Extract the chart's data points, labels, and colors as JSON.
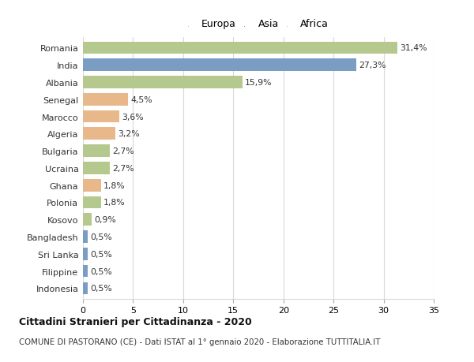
{
  "countries": [
    "Romania",
    "India",
    "Albania",
    "Senegal",
    "Marocco",
    "Algeria",
    "Bulgaria",
    "Ucraina",
    "Ghana",
    "Polonia",
    "Kosovo",
    "Bangladesh",
    "Sri Lanka",
    "Filippine",
    "Indonesia"
  ],
  "values": [
    31.4,
    27.3,
    15.9,
    4.5,
    3.6,
    3.2,
    2.7,
    2.7,
    1.8,
    1.8,
    0.9,
    0.5,
    0.5,
    0.5,
    0.5
  ],
  "continents": [
    "Europa",
    "Asia",
    "Europa",
    "Africa",
    "Africa",
    "Africa",
    "Europa",
    "Europa",
    "Africa",
    "Europa",
    "Europa",
    "Asia",
    "Asia",
    "Asia",
    "Asia"
  ],
  "labels": [
    "31,4%",
    "27,3%",
    "15,9%",
    "4,5%",
    "3,6%",
    "3,2%",
    "2,7%",
    "2,7%",
    "1,8%",
    "1,8%",
    "0,9%",
    "0,5%",
    "0,5%",
    "0,5%",
    "0,5%"
  ],
  "color_map": {
    "Europa": "#b5c98e",
    "Asia": "#7b9dc4",
    "Africa": "#e8b88a"
  },
  "xlim": [
    0,
    35
  ],
  "xticks": [
    0,
    5,
    10,
    15,
    20,
    25,
    30,
    35
  ],
  "background_color": "#ffffff",
  "grid_color": "#d8d8d8",
  "title_main": "Cittadini Stranieri per Cittadinanza - 2020",
  "title_sub": "COMUNE DI PASTORANO (CE) - Dati ISTAT al 1° gennaio 2020 - Elaborazione TUTTITALIA.IT",
  "bar_height": 0.72,
  "fig_width": 6.0,
  "fig_height": 4.6,
  "label_fontsize": 7.8,
  "tick_fontsize": 8.0,
  "legend_fontsize": 9.0
}
